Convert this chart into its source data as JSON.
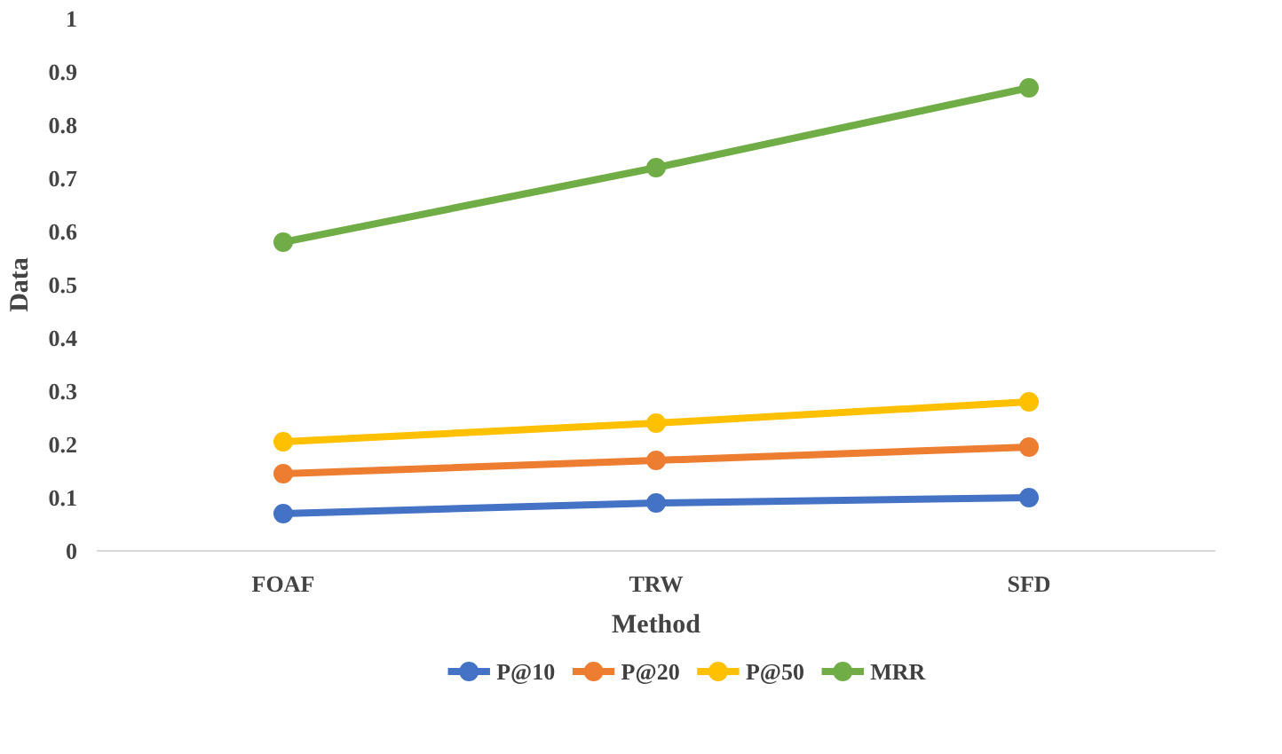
{
  "chart_data": {
    "type": "line",
    "xlabel": "Method",
    "ylabel": "Data",
    "categories": [
      "FOAF",
      "TRW",
      "SFD"
    ],
    "series": [
      {
        "name": "P@10",
        "color": "#4472c4",
        "values": [
          0.07,
          0.09,
          0.1
        ]
      },
      {
        "name": "P@20",
        "color": "#ed7d31",
        "values": [
          0.145,
          0.17,
          0.195
        ]
      },
      {
        "name": "P@50",
        "color": "#ffc000",
        "values": [
          0.205,
          0.24,
          0.28
        ]
      },
      {
        "name": "MRR",
        "color": "#70ad47",
        "values": [
          0.58,
          0.72,
          0.87
        ]
      }
    ],
    "ylim": [
      0,
      1
    ],
    "yticks": [
      0,
      0.1,
      0.2,
      0.3,
      0.4,
      0.5,
      0.6,
      0.7,
      0.8,
      0.9,
      1
    ],
    "grid": false,
    "legend": "bottom",
    "marker": "circle",
    "line_style": "solid"
  }
}
